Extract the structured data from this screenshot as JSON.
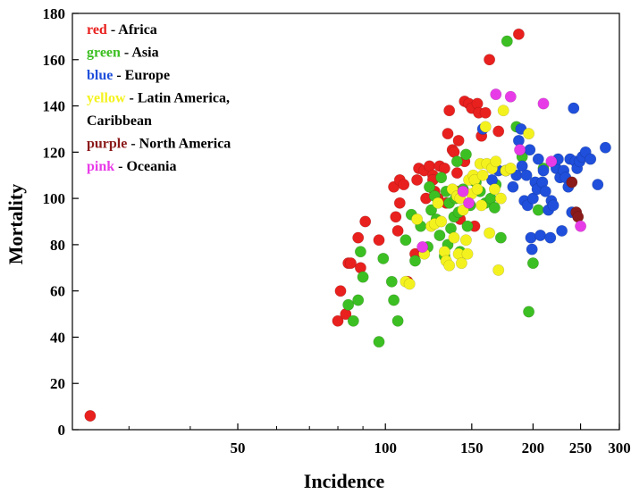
{
  "chart_data": {
    "type": "scatter",
    "xlabel": "Incidence",
    "ylabel": "Mortality",
    "x_scale": "log",
    "xlim": [
      23,
      300
    ],
    "ylim": [
      0,
      180
    ],
    "x_ticks": [
      50,
      100,
      150,
      200,
      250,
      300
    ],
    "y_ticks": [
      0,
      20,
      40,
      60,
      80,
      100,
      120,
      140,
      160,
      180
    ],
    "legend": {
      "placement": "top-left",
      "entries": [
        {
          "key": "red",
          "label": "Africa",
          "color": "#e8201e"
        },
        {
          "key": "green",
          "label": "Asia",
          "color": "#3cbf22"
        },
        {
          "key": "blue",
          "label": "Europe",
          "color": "#1f4fdb"
        },
        {
          "key": "yellow",
          "label": "Latin America,",
          "label2": "Caribbean",
          "color": "#f4f21e"
        },
        {
          "key": "purple",
          "label": "North America",
          "color": "#8b1a1a"
        },
        {
          "key": "pink",
          "label": "Oceania",
          "color": "#e83be8"
        }
      ]
    },
    "series": [
      {
        "name": "Africa",
        "color": "#e8201e",
        "points": [
          [
            25,
            6
          ],
          [
            80,
            47
          ],
          [
            81,
            60
          ],
          [
            83,
            50
          ],
          [
            84,
            72
          ],
          [
            85,
            72
          ],
          [
            88,
            83
          ],
          [
            89,
            70
          ],
          [
            91,
            90
          ],
          [
            97,
            82
          ],
          [
            104,
            105
          ],
          [
            105,
            92
          ],
          [
            106,
            86
          ],
          [
            107,
            98
          ],
          [
            107,
            108
          ],
          [
            109,
            106
          ],
          [
            111,
            64
          ],
          [
            115,
            76
          ],
          [
            116,
            108
          ],
          [
            117,
            113
          ],
          [
            120,
            112
          ],
          [
            121,
            100
          ],
          [
            123,
            114
          ],
          [
            125,
            110
          ],
          [
            125,
            108
          ],
          [
            126,
            103
          ],
          [
            128,
            100
          ],
          [
            129,
            114
          ],
          [
            132,
            113
          ],
          [
            133,
            98
          ],
          [
            134,
            128
          ],
          [
            135,
            138
          ],
          [
            137,
            121
          ],
          [
            138,
            120
          ],
          [
            140,
            111
          ],
          [
            140,
            103
          ],
          [
            141,
            125
          ],
          [
            142,
            91
          ],
          [
            145,
            116
          ],
          [
            145,
            142
          ],
          [
            148,
            141
          ],
          [
            150,
            139
          ],
          [
            152,
            88
          ],
          [
            154,
            141
          ],
          [
            155,
            137
          ],
          [
            157,
            127
          ],
          [
            160,
            137
          ],
          [
            163,
            160
          ],
          [
            170,
            129
          ],
          [
            187,
            171
          ]
        ]
      },
      {
        "name": "Asia",
        "color": "#3cbf22",
        "points": [
          [
            84,
            54
          ],
          [
            86,
            47
          ],
          [
            88,
            56
          ],
          [
            89,
            77
          ],
          [
            90,
            66
          ],
          [
            97,
            38
          ],
          [
            99,
            74
          ],
          [
            103,
            64
          ],
          [
            104,
            56
          ],
          [
            106,
            47
          ],
          [
            110,
            82
          ],
          [
            113,
            93
          ],
          [
            115,
            73
          ],
          [
            118,
            88
          ],
          [
            122,
            79
          ],
          [
            123,
            105
          ],
          [
            124,
            95
          ],
          [
            126,
            101
          ],
          [
            127,
            91
          ],
          [
            129,
            84
          ],
          [
            130,
            109
          ],
          [
            132,
            75
          ],
          [
            133,
            103
          ],
          [
            134,
            80
          ],
          [
            135,
            98
          ],
          [
            136,
            87
          ],
          [
            138,
            92
          ],
          [
            139,
            100
          ],
          [
            140,
            116
          ],
          [
            141,
            94
          ],
          [
            142,
            77
          ],
          [
            144,
            104
          ],
          [
            146,
            119
          ],
          [
            147,
            88
          ],
          [
            149,
            97
          ],
          [
            150,
            108
          ],
          [
            153,
            107
          ],
          [
            156,
            103
          ],
          [
            160,
            98
          ],
          [
            164,
            100
          ],
          [
            168,
            106
          ],
          [
            172,
            83
          ],
          [
            177,
            168
          ],
          [
            185,
            131
          ],
          [
            190,
            118
          ],
          [
            196,
            51
          ],
          [
            200,
            72
          ],
          [
            205,
            95
          ],
          [
            210,
            113
          ],
          [
            167,
            96
          ]
        ]
      },
      {
        "name": "Europe",
        "color": "#1f4fdb",
        "points": [
          [
            182,
            105
          ],
          [
            185,
            110
          ],
          [
            187,
            125
          ],
          [
            189,
            130
          ],
          [
            190,
            114
          ],
          [
            192,
            99
          ],
          [
            194,
            110
          ],
          [
            195,
            97
          ],
          [
            197,
            121
          ],
          [
            198,
            83
          ],
          [
            199,
            78
          ],
          [
            200,
            100
          ],
          [
            202,
            107
          ],
          [
            204,
            104
          ],
          [
            205,
            117
          ],
          [
            207,
            84
          ],
          [
            209,
            107
          ],
          [
            210,
            112
          ],
          [
            212,
            103
          ],
          [
            215,
            95
          ],
          [
            217,
            83
          ],
          [
            218,
            99
          ],
          [
            220,
            97
          ],
          [
            223,
            113
          ],
          [
            225,
            117
          ],
          [
            227,
            109
          ],
          [
            229,
            86
          ],
          [
            231,
            112
          ],
          [
            233,
            109
          ],
          [
            236,
            105
          ],
          [
            238,
            117
          ],
          [
            240,
            94
          ],
          [
            242,
            139
          ],
          [
            244,
            116
          ],
          [
            246,
            113
          ],
          [
            249,
            116
          ],
          [
            252,
            118
          ],
          [
            256,
            120
          ],
          [
            262,
            117
          ],
          [
            271,
            106
          ],
          [
            281,
            122
          ],
          [
            170,
            112
          ],
          [
            176,
            112
          ],
          [
            165,
            108
          ],
          [
            158,
            130
          ]
        ]
      },
      {
        "name": "Latin America, Caribbean",
        "color": "#f4f21e",
        "points": [
          [
            110,
            64
          ],
          [
            112,
            63
          ],
          [
            116,
            91
          ],
          [
            120,
            76
          ],
          [
            124,
            88
          ],
          [
            126,
            89
          ],
          [
            128,
            98
          ],
          [
            130,
            90
          ],
          [
            132,
            77
          ],
          [
            133,
            73
          ],
          [
            135,
            71
          ],
          [
            137,
            104
          ],
          [
            138,
            83
          ],
          [
            140,
            101
          ],
          [
            141,
            76
          ],
          [
            142,
            100
          ],
          [
            143,
            72
          ],
          [
            144,
            95
          ],
          [
            146,
            82
          ],
          [
            147,
            76
          ],
          [
            148,
            108
          ],
          [
            150,
            102
          ],
          [
            151,
            110
          ],
          [
            152,
            108
          ],
          [
            154,
            104
          ],
          [
            156,
            115
          ],
          [
            157,
            97
          ],
          [
            158,
            110
          ],
          [
            160,
            131
          ],
          [
            161,
            115
          ],
          [
            163,
            85
          ],
          [
            165,
            113
          ],
          [
            167,
            104
          ],
          [
            168,
            116
          ],
          [
            170,
            69
          ],
          [
            172,
            100
          ],
          [
            174,
            138
          ],
          [
            176,
            112
          ],
          [
            180,
            113
          ],
          [
            196,
            128
          ]
        ]
      },
      {
        "name": "North America",
        "color": "#8b1a1a",
        "points": [
          [
            240,
            107
          ],
          [
            245,
            94
          ],
          [
            247,
            92
          ]
        ]
      },
      {
        "name": "Oceania",
        "color": "#e83be8",
        "points": [
          [
            119,
            79
          ],
          [
            144,
            103
          ],
          [
            148,
            98
          ],
          [
            168,
            145
          ],
          [
            180,
            144
          ],
          [
            188,
            121
          ],
          [
            210,
            141
          ],
          [
            218,
            116
          ],
          [
            250,
            88
          ]
        ]
      }
    ]
  }
}
